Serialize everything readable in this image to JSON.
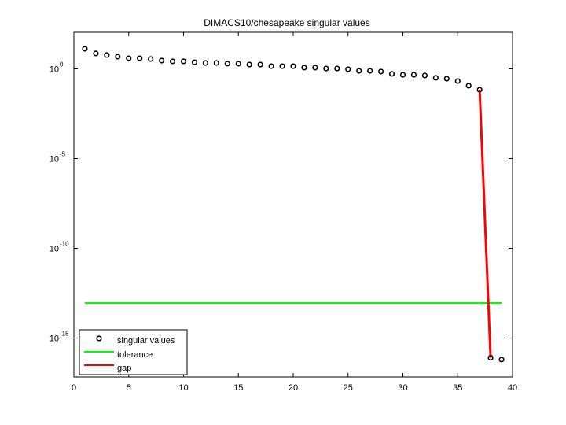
{
  "chart_data": {
    "type": "scatter",
    "title": "DIMACS10/chesapeake singular values",
    "xlabel": "",
    "ylabel": "",
    "xlim": [
      0,
      40
    ],
    "ylim_log10": [
      -17.2,
      2.0
    ],
    "yscale": "log",
    "x_ticks": [
      0,
      5,
      10,
      15,
      20,
      25,
      30,
      35,
      40
    ],
    "y_ticks": [
      {
        "base": "10",
        "exp": "0",
        "log10": 0
      },
      {
        "base": "10",
        "exp": "-5",
        "log10": -5
      },
      {
        "base": "10",
        "exp": "-10",
        "log10": -10
      },
      {
        "base": "10",
        "exp": "-15",
        "log10": -15
      }
    ],
    "grid": false,
    "legend_position": "lower left",
    "series": [
      {
        "name": "singular values",
        "kind": "markers",
        "marker": "circle",
        "color": "#000000",
        "x": [
          1,
          2,
          3,
          4,
          5,
          6,
          7,
          8,
          9,
          10,
          11,
          12,
          13,
          14,
          15,
          16,
          17,
          18,
          19,
          20,
          21,
          22,
          23,
          24,
          25,
          26,
          27,
          28,
          29,
          30,
          31,
          32,
          33,
          34,
          35,
          36,
          37,
          38,
          39
        ],
        "log10_values": [
          1.12,
          0.86,
          0.77,
          0.68,
          0.59,
          0.59,
          0.55,
          0.46,
          0.42,
          0.42,
          0.37,
          0.33,
          0.33,
          0.29,
          0.29,
          0.24,
          0.24,
          0.15,
          0.15,
          0.15,
          0.07,
          0.07,
          0.02,
          0.02,
          -0.02,
          -0.11,
          -0.11,
          -0.15,
          -0.28,
          -0.33,
          -0.33,
          -0.37,
          -0.5,
          -0.55,
          -0.68,
          -0.94,
          -1.16,
          -16.1,
          -16.2
        ]
      },
      {
        "name": "tolerance",
        "kind": "line",
        "color": "#00ff00",
        "x": [
          1,
          39
        ],
        "log10_values": [
          -13.05,
          -13.05
        ]
      },
      {
        "name": "gap",
        "kind": "line",
        "color": "#ff0000",
        "x": [
          37,
          38
        ],
        "log10_values": [
          -1.16,
          -16.1
        ]
      }
    ],
    "legend": [
      "singular values",
      "tolerance",
      "gap"
    ]
  }
}
